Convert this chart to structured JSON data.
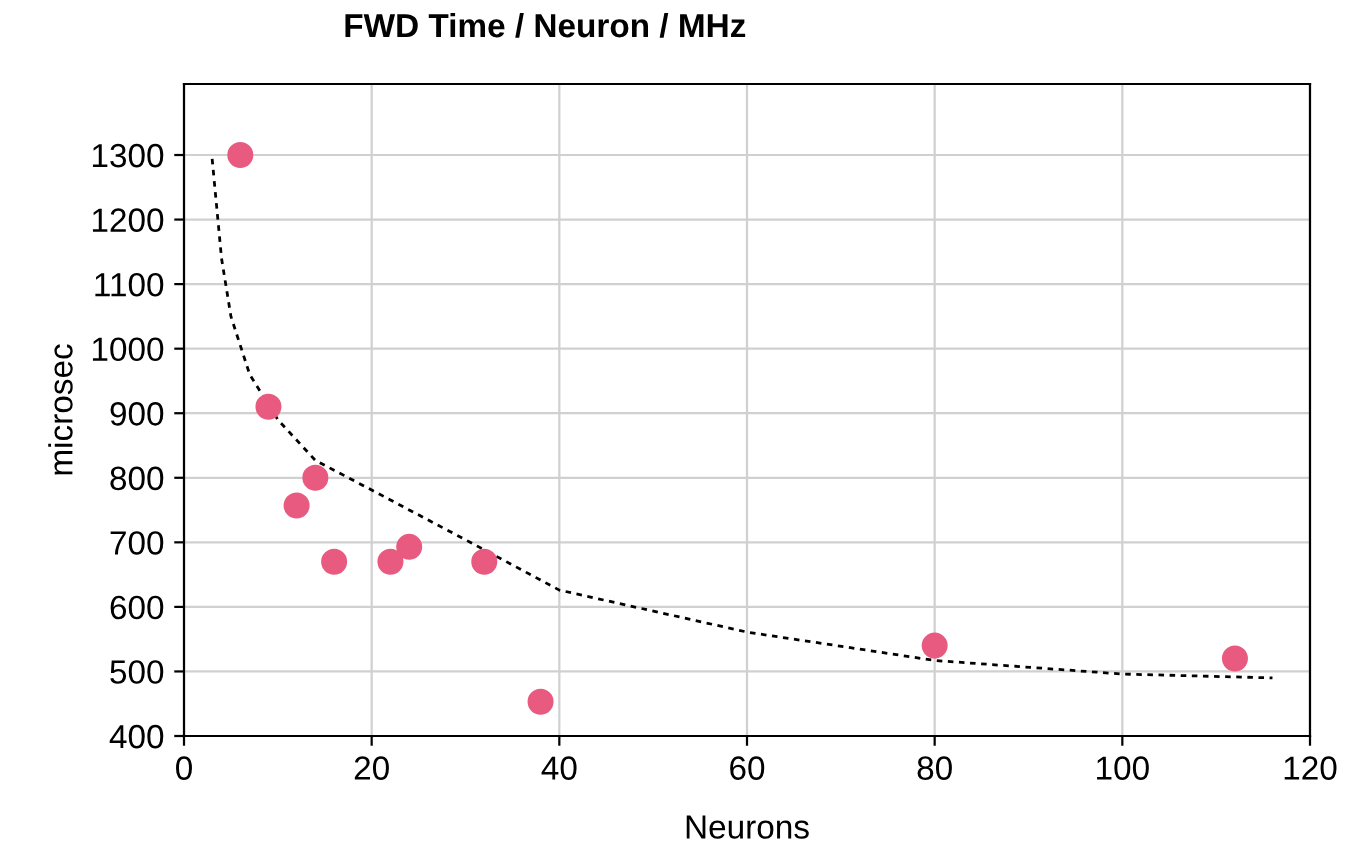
{
  "chart_data": {
    "type": "scatter",
    "title": "FWD Time / Neuron / MHz",
    "xlabel": "Neurons",
    "ylabel": "microsec",
    "xlim": [
      0,
      120
    ],
    "xticks": [
      0,
      20,
      40,
      60,
      80,
      100,
      120
    ],
    "ylim": [
      400,
      1410
    ],
    "yticks": [
      400,
      500,
      600,
      700,
      800,
      900,
      1000,
      1100,
      1200,
      1300
    ],
    "grid": true,
    "marker": "circle",
    "series": [
      {
        "color": "#e85a7f",
        "x": [
          6,
          9,
          12,
          14,
          16,
          22,
          24,
          32,
          38,
          80,
          112
        ],
        "values": [
          1300,
          910,
          757,
          800,
          670,
          670,
          693,
          670,
          453,
          540,
          520
        ]
      },
      {
        "type": "line",
        "line_style": "dotted",
        "color": "#000000",
        "marker": "none",
        "x": [
          3,
          4,
          5,
          7,
          10,
          14,
          20,
          30,
          40,
          60,
          80,
          100,
          116
        ],
        "values": [
          1294,
          1140,
          1050,
          960,
          890,
          827,
          781,
          704,
          626,
          561,
          517,
          496,
          490
        ]
      }
    ]
  }
}
